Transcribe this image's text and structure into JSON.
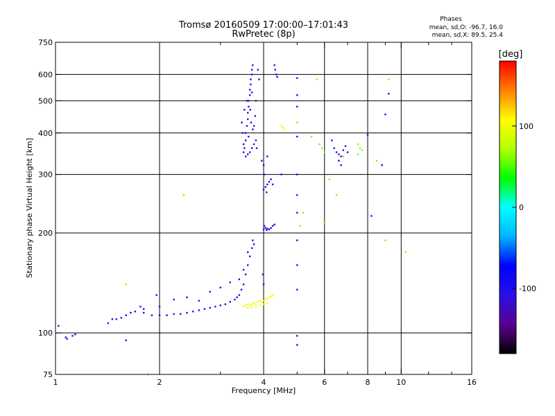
{
  "chart_data": {
    "type": "scatter",
    "title": "Tromsø 20160509 17:00:00–17:01:43",
    "subtitle": "RwPretec (8p)",
    "xlabel": "Frequency [MHz]",
    "ylabel": "Stationary phase Virtual Height [km]",
    "x_scale": "log",
    "y_scale": "log",
    "xlim": [
      1,
      16
    ],
    "ylim": [
      75,
      750
    ],
    "x_ticks": [
      1,
      2,
      4,
      6,
      8,
      10,
      16
    ],
    "x_tick_labels": [
      "1",
      "2",
      "4",
      "6",
      "8",
      "10",
      "16"
    ],
    "x_grid": [
      2,
      4,
      6,
      8,
      10
    ],
    "x_minor_ticks": [
      3,
      5,
      7,
      9,
      12,
      14
    ],
    "y_ticks": [
      75,
      100,
      200,
      300,
      400,
      500,
      600,
      750
    ],
    "y_tick_labels": [
      "75",
      "100",
      "200",
      "300",
      "400",
      "500",
      "600",
      "750"
    ],
    "y_grid": [
      100,
      200,
      300,
      400,
      500,
      600
    ],
    "grid": true,
    "phases_box": {
      "title": "Phases",
      "line1": "mean, sd,O: -96.7, 16.0",
      "line2": "mean, sd,X:  89.5, 25.4"
    },
    "colorbar": {
      "label": "[deg]",
      "range": [
        -180,
        180
      ],
      "ticks": [
        100,
        0,
        -100
      ],
      "tick_labels": [
        "100",
        "0",
        "-100"
      ],
      "colormap": [
        "#000000",
        "#5a0090",
        "#2a10e6",
        "#0000ff",
        "#00b4ff",
        "#00ffff",
        "#00ff00",
        "#b4ff00",
        "#ffff00",
        "#ff8000",
        "#ff0000"
      ]
    },
    "series": [
      {
        "trace": "o-mode low",
        "phase": -100,
        "points": [
          [
            1.02,
            105
          ],
          [
            1.07,
            97
          ],
          [
            1.08,
            96
          ],
          [
            1.12,
            98
          ],
          [
            1.14,
            99
          ],
          [
            1.42,
            107
          ],
          [
            1.46,
            110
          ],
          [
            1.5,
            110
          ],
          [
            1.55,
            111
          ],
          [
            1.6,
            113
          ],
          [
            1.65,
            115
          ],
          [
            1.7,
            116
          ],
          [
            1.8,
            115
          ],
          [
            1.9,
            113
          ],
          [
            2.0,
            113
          ],
          [
            2.1,
            113
          ],
          [
            2.2,
            114
          ],
          [
            2.3,
            114
          ],
          [
            2.4,
            115
          ],
          [
            2.5,
            116
          ],
          [
            2.6,
            117
          ],
          [
            2.7,
            118
          ],
          [
            2.8,
            119
          ],
          [
            2.9,
            120
          ],
          [
            3.0,
            121
          ],
          [
            3.1,
            122
          ],
          [
            3.2,
            124
          ],
          [
            3.3,
            126
          ],
          [
            3.35,
            128
          ],
          [
            3.4,
            130
          ],
          [
            3.45,
            135
          ],
          [
            3.5,
            140
          ],
          [
            3.55,
            150
          ],
          [
            3.6,
            160
          ],
          [
            3.65,
            170
          ],
          [
            3.7,
            180
          ],
          [
            3.72,
            190
          ],
          [
            3.75,
            185
          ],
          [
            3.6,
            175
          ],
          [
            3.5,
            155
          ],
          [
            3.4,
            145
          ],
          [
            2.6,
            125
          ],
          [
            2.4,
            128
          ],
          [
            2.8,
            133
          ],
          [
            3.0,
            137
          ],
          [
            3.2,
            142
          ],
          [
            2.2,
            126
          ],
          [
            2.0,
            120
          ],
          [
            1.8,
            118
          ],
          [
            1.96,
            130
          ],
          [
            1.76,
            120
          ]
        ]
      },
      {
        "trace": "o-mode F-region",
        "phase": -100,
        "points": [
          [
            3.5,
            350
          ],
          [
            3.52,
            360
          ],
          [
            3.55,
            380
          ],
          [
            3.55,
            400
          ],
          [
            3.58,
            420
          ],
          [
            3.6,
            440
          ],
          [
            3.6,
            460
          ],
          [
            3.62,
            480
          ],
          [
            3.62,
            500
          ],
          [
            3.65,
            520
          ],
          [
            3.65,
            540
          ],
          [
            3.67,
            560
          ],
          [
            3.67,
            580
          ],
          [
            3.7,
            600
          ],
          [
            3.7,
            620
          ],
          [
            3.72,
            640
          ],
          [
            3.55,
            340
          ],
          [
            3.6,
            345
          ],
          [
            3.65,
            350
          ],
          [
            3.7,
            360
          ],
          [
            3.75,
            370
          ],
          [
            3.8,
            380
          ],
          [
            3.82,
            360
          ],
          [
            3.75,
            420
          ],
          [
            3.78,
            450
          ],
          [
            3.8,
            500
          ],
          [
            3.85,
            620
          ],
          [
            3.88,
            580
          ],
          [
            3.5,
            370
          ],
          [
            3.48,
            400
          ],
          [
            3.46,
            430
          ],
          [
            3.52,
            470
          ],
          [
            3.58,
            500
          ],
          [
            3.68,
            430
          ],
          [
            3.72,
            410
          ],
          [
            3.62,
            390
          ],
          [
            3.66,
            470
          ],
          [
            3.7,
            530
          ]
        ]
      },
      {
        "trace": "o-mode upper",
        "phase": -100,
        "points": [
          [
            4.0,
            205
          ],
          [
            4.05,
            207
          ],
          [
            4.1,
            206
          ],
          [
            4.15,
            205
          ],
          [
            4.2,
            207
          ],
          [
            4.25,
            210
          ],
          [
            4.3,
            212
          ],
          [
            4.02,
            210
          ],
          [
            4.08,
            204
          ],
          [
            4.0,
            270
          ],
          [
            4.05,
            275
          ],
          [
            4.1,
            280
          ],
          [
            4.15,
            285
          ],
          [
            4.2,
            290
          ],
          [
            4.25,
            280
          ],
          [
            4.02,
            300
          ],
          [
            4.08,
            265
          ],
          [
            4.3,
            640
          ],
          [
            4.32,
            620
          ],
          [
            4.35,
            600
          ],
          [
            4.38,
            590
          ],
          [
            4.0,
            320
          ],
          [
            3.95,
            330
          ],
          [
            4.1,
            340
          ],
          [
            3.98,
            150
          ],
          [
            4.0,
            140
          ]
        ]
      },
      {
        "trace": "x-mode",
        "phase": 100,
        "points": [
          [
            3.5,
            120
          ],
          [
            3.55,
            121
          ],
          [
            3.6,
            122
          ],
          [
            3.65,
            121
          ],
          [
            3.7,
            122
          ],
          [
            3.75,
            123
          ],
          [
            3.8,
            122
          ],
          [
            3.85,
            124
          ],
          [
            3.9,
            125
          ],
          [
            3.95,
            124
          ],
          [
            4.0,
            125
          ],
          [
            4.05,
            126
          ],
          [
            4.1,
            127
          ],
          [
            4.15,
            128
          ],
          [
            4.2,
            129
          ],
          [
            4.25,
            130
          ],
          [
            3.6,
            119
          ],
          [
            3.7,
            119
          ],
          [
            3.8,
            120
          ],
          [
            3.9,
            121
          ],
          [
            4.0,
            122
          ],
          [
            4.1,
            123
          ],
          [
            4.5,
            420
          ],
          [
            4.55,
            415
          ],
          [
            4.6,
            410
          ]
        ]
      },
      {
        "trace": "scattered echoes",
        "phase": -100,
        "points": [
          [
            5.0,
            585
          ],
          [
            5.0,
            520
          ],
          [
            5.0,
            480
          ],
          [
            5.0,
            390
          ],
          [
            5.0,
            300
          ],
          [
            5.0,
            260
          ],
          [
            5.0,
            230
          ],
          [
            5.0,
            190
          ],
          [
            5.0,
            160
          ],
          [
            5.0,
            135
          ],
          [
            5.0,
            98
          ],
          [
            5.0,
            92
          ],
          [
            6.3,
            380
          ],
          [
            6.4,
            360
          ],
          [
            6.5,
            350
          ],
          [
            6.6,
            345
          ],
          [
            6.7,
            340
          ],
          [
            6.8,
            355
          ],
          [
            6.9,
            365
          ],
          [
            7.0,
            350
          ],
          [
            6.6,
            330
          ],
          [
            6.7,
            320
          ],
          [
            8.0,
            395
          ],
          [
            8.2,
            225
          ],
          [
            8.8,
            320
          ],
          [
            9.0,
            455
          ],
          [
            9.2,
            525
          ],
          [
            1.6,
            95
          ],
          [
            4.5,
            300
          ]
        ]
      },
      {
        "trace": "scattered mixed",
        "phase": 60,
        "points": [
          [
            5.7,
            580
          ],
          [
            5.8,
            370
          ],
          [
            5.9,
            360
          ],
          [
            6.0,
            350
          ],
          [
            7.5,
            370
          ],
          [
            7.6,
            360
          ],
          [
            7.7,
            355
          ],
          [
            7.5,
            345
          ],
          [
            6.8,
            340
          ],
          [
            9.2,
            580
          ],
          [
            1.6,
            140
          ],
          [
            1.85,
            75
          ],
          [
            2.35,
            260
          ],
          [
            5.2,
            230
          ],
          [
            5.1,
            210
          ],
          [
            6.0,
            215
          ],
          [
            6.2,
            290
          ],
          [
            6.5,
            260
          ],
          [
            5.0,
            430
          ],
          [
            5.5,
            390
          ],
          [
            8.5,
            330
          ],
          [
            9.0,
            190
          ],
          [
            10.3,
            175
          ]
        ]
      }
    ]
  }
}
